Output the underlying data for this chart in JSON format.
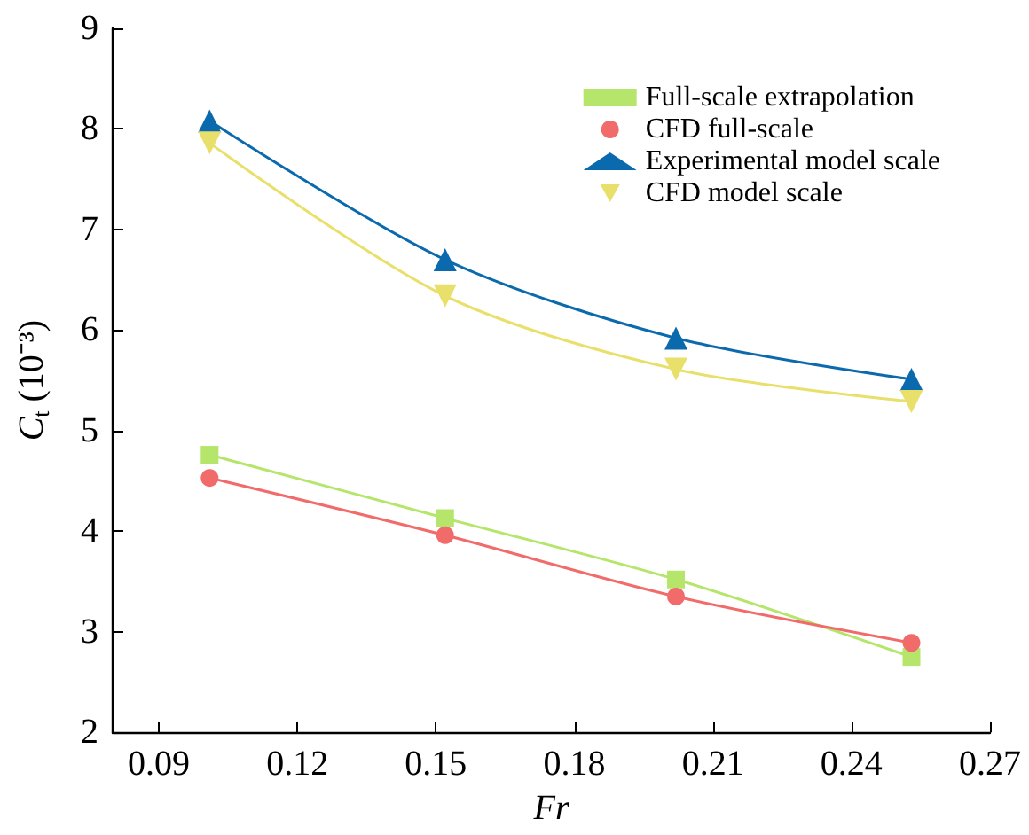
{
  "chart_data": {
    "type": "line",
    "xlabel": "Fr",
    "ylabel": "C$_{t}$ (10⁻³)",
    "xlim": [
      0.08,
      0.27
    ],
    "xticks": [
      0.09,
      0.12,
      0.15,
      0.18,
      0.21,
      0.24,
      0.27
    ],
    "ylim": [
      2,
      9
    ],
    "yticks": [
      2,
      3,
      4,
      5,
      6,
      7,
      8,
      9
    ],
    "grid": false,
    "legend": "top right",
    "series": [
      {
        "name": "Full-scale extrapolation",
        "color": "#b5e66b",
        "marker": "square",
        "x": [
          0.101,
          0.152,
          0.202,
          0.253
        ],
        "values": [
          4.76,
          4.13,
          3.52,
          2.75
        ]
      },
      {
        "name": "CFD full-scale",
        "color": "#f26b6b",
        "marker": "circle",
        "x": [
          0.101,
          0.152,
          0.202,
          0.253
        ],
        "values": [
          4.53,
          3.96,
          3.35,
          2.89
        ]
      },
      {
        "name": "Experimental model scale",
        "color": "#0a6aad",
        "marker": "triangle",
        "x": [
          0.101,
          0.152,
          0.202,
          0.253
        ],
        "values": [
          8.08,
          6.7,
          5.92,
          5.51
        ]
      },
      {
        "name": "CFD model scale",
        "color": "#e8e06b",
        "marker": "triangle_down",
        "x": [
          0.101,
          0.152,
          0.202,
          0.253
        ],
        "values": [
          7.86,
          6.34,
          5.61,
          5.29
        ]
      }
    ]
  }
}
